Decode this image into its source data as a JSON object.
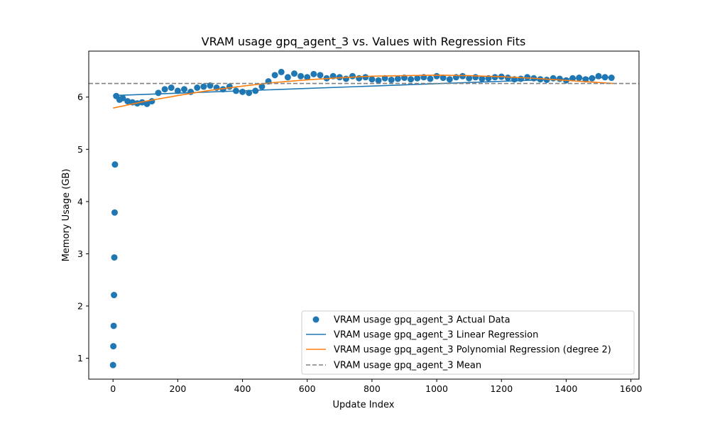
{
  "chart_data": {
    "type": "scatter",
    "title": "VRAM usage gpq_agent_3 vs. Values with Regression Fits",
    "xlabel": "Update Index",
    "ylabel": "Memory Usage (GB)",
    "xlim": [
      -75,
      1625
    ],
    "ylim": [
      0.6,
      6.88
    ],
    "xticks": [
      0,
      200,
      400,
      600,
      800,
      1000,
      1200,
      1400,
      1600
    ],
    "yticks": [
      1,
      2,
      3,
      4,
      5,
      6
    ],
    "grid": false,
    "legend_position": "lower-right",
    "series": [
      {
        "name": "VRAM usage gpq_agent_3 Actual Data",
        "kind": "scatter",
        "color": "#1f77b4",
        "x": [
          0,
          1,
          2,
          3,
          4,
          5,
          6,
          10,
          20,
          30,
          45,
          60,
          75,
          90,
          105,
          120,
          140,
          160,
          180,
          200,
          220,
          240,
          260,
          280,
          300,
          320,
          340,
          360,
          380,
          400,
          420,
          440,
          460,
          480,
          500,
          520,
          540,
          560,
          580,
          600,
          620,
          640,
          660,
          680,
          700,
          720,
          740,
          760,
          780,
          800,
          820,
          840,
          860,
          880,
          900,
          920,
          940,
          960,
          980,
          1000,
          1020,
          1040,
          1060,
          1080,
          1100,
          1120,
          1140,
          1160,
          1180,
          1200,
          1220,
          1240,
          1260,
          1280,
          1300,
          1320,
          1340,
          1360,
          1380,
          1400,
          1420,
          1440,
          1460,
          1480,
          1500,
          1520,
          1540
        ],
        "y": [
          0.87,
          1.23,
          1.62,
          2.21,
          2.93,
          3.79,
          4.71,
          6.02,
          5.95,
          5.98,
          5.92,
          5.9,
          5.88,
          5.9,
          5.87,
          5.92,
          6.08,
          6.15,
          6.18,
          6.12,
          6.15,
          6.1,
          6.18,
          6.2,
          6.22,
          6.18,
          6.15,
          6.2,
          6.12,
          6.1,
          6.08,
          6.12,
          6.2,
          6.3,
          6.42,
          6.48,
          6.38,
          6.45,
          6.4,
          6.38,
          6.44,
          6.42,
          6.36,
          6.4,
          6.38,
          6.35,
          6.4,
          6.36,
          6.38,
          6.34,
          6.32,
          6.36,
          6.33,
          6.35,
          6.37,
          6.34,
          6.36,
          6.38,
          6.35,
          6.4,
          6.37,
          6.34,
          6.38,
          6.4,
          6.36,
          6.38,
          6.35,
          6.36,
          6.38,
          6.39,
          6.37,
          6.34,
          6.35,
          6.38,
          6.36,
          6.34,
          6.33,
          6.36,
          6.35,
          6.32,
          6.36,
          6.37,
          6.34,
          6.36,
          6.4,
          6.38,
          6.37
        ]
      },
      {
        "name": "VRAM usage gpq_agent_3 Linear Regression",
        "kind": "line",
        "color": "#1f77b4",
        "x": [
          0,
          1545
        ],
        "y": [
          6.03,
          6.38
        ]
      },
      {
        "name": "VRAM usage gpq_agent_3 Polynomial Regression (degree 2)",
        "kind": "line",
        "color": "#ff7f0e",
        "x": [
          0,
          100,
          200,
          300,
          400,
          500,
          600,
          700,
          800,
          900,
          1000,
          1100,
          1200,
          1300,
          1400,
          1500,
          1545
        ],
        "y": [
          5.79,
          5.92,
          6.03,
          6.13,
          6.21,
          6.28,
          6.33,
          6.37,
          6.4,
          6.41,
          6.42,
          6.41,
          6.39,
          6.36,
          6.32,
          6.28,
          6.26
        ]
      },
      {
        "name": "VRAM usage gpq_agent_3 Mean",
        "kind": "hline",
        "color": "#808080",
        "y": 6.26
      }
    ]
  }
}
